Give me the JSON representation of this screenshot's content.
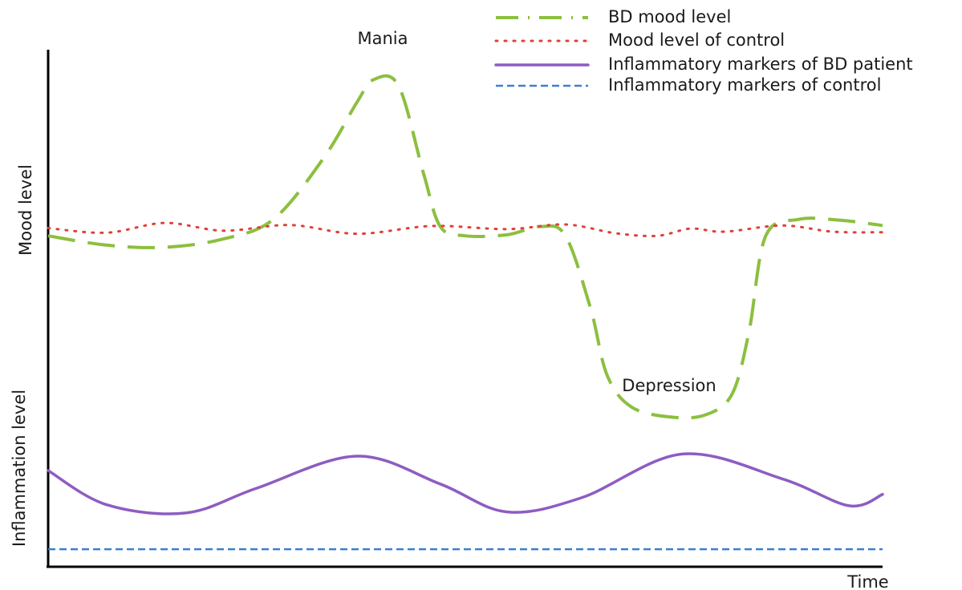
{
  "chart_data": {
    "type": "line",
    "title": "",
    "xlabel": "Time",
    "ylabel_upper": "Mood level",
    "ylabel_lower": "Inflammation level",
    "x": [
      0,
      0.05,
      0.1,
      0.15,
      0.2,
      0.25,
      0.3,
      0.35,
      0.4,
      0.45,
      0.5,
      0.55,
      0.6,
      0.65,
      0.7,
      0.75,
      0.8,
      0.85,
      0.9,
      0.95,
      1.0
    ],
    "xlim": [
      0,
      1
    ],
    "ylim": [
      0,
      1
    ],
    "legend_position": "top-right",
    "grid": false,
    "series": [
      {
        "name": "BD mood level",
        "color": "#8cbf3f",
        "style": "long-dash",
        "points": [
          [
            0,
            0.64
          ],
          [
            0.07,
            0.622
          ],
          [
            0.14,
            0.618
          ],
          [
            0.21,
            0.634
          ],
          [
            0.27,
            0.672
          ],
          [
            0.33,
            0.79
          ],
          [
            0.37,
            0.898
          ],
          [
            0.39,
            0.942
          ],
          [
            0.42,
            0.93
          ],
          [
            0.45,
            0.76
          ],
          [
            0.47,
            0.658
          ],
          [
            0.5,
            0.64
          ],
          [
            0.55,
            0.642
          ],
          [
            0.59,
            0.658
          ],
          [
            0.62,
            0.64
          ],
          [
            0.65,
            0.5
          ],
          [
            0.67,
            0.37
          ],
          [
            0.7,
            0.308
          ],
          [
            0.75,
            0.289
          ],
          [
            0.79,
            0.295
          ],
          [
            0.82,
            0.335
          ],
          [
            0.84,
            0.455
          ],
          [
            0.86,
            0.64
          ],
          [
            0.9,
            0.672
          ],
          [
            0.95,
            0.67
          ],
          [
            1.0,
            0.66
          ]
        ]
      },
      {
        "name": "Mood level of control",
        "color": "#e0403a",
        "style": "dotted",
        "points": [
          [
            0,
            0.655
          ],
          [
            0.07,
            0.646
          ],
          [
            0.14,
            0.665
          ],
          [
            0.21,
            0.65
          ],
          [
            0.29,
            0.661
          ],
          [
            0.37,
            0.644
          ],
          [
            0.46,
            0.659
          ],
          [
            0.55,
            0.653
          ],
          [
            0.62,
            0.662
          ],
          [
            0.68,
            0.645
          ],
          [
            0.73,
            0.64
          ],
          [
            0.77,
            0.654
          ],
          [
            0.81,
            0.648
          ],
          [
            0.88,
            0.66
          ],
          [
            0.94,
            0.648
          ],
          [
            1.0,
            0.647
          ]
        ]
      },
      {
        "name": "Inflammatory markers of BD patient",
        "color": "#8e5cc2",
        "style": "solid",
        "points": [
          [
            0,
            0.186
          ],
          [
            0.07,
            0.12
          ],
          [
            0.165,
            0.104
          ],
          [
            0.25,
            0.152
          ],
          [
            0.37,
            0.214
          ],
          [
            0.47,
            0.16
          ],
          [
            0.55,
            0.106
          ],
          [
            0.64,
            0.134
          ],
          [
            0.76,
            0.218
          ],
          [
            0.88,
            0.17
          ],
          [
            0.96,
            0.118
          ],
          [
            1.0,
            0.14
          ]
        ]
      },
      {
        "name": "Inflammatory markers of control",
        "color": "#3b7fd3",
        "style": "dashed",
        "points": [
          [
            0,
            0.034
          ],
          [
            1.0,
            0.034
          ]
        ]
      }
    ],
    "annotations": [
      {
        "text": "Mania",
        "x": 0.39,
        "y": 0.995
      },
      {
        "text": "Depression",
        "x": 0.76,
        "y": 0.355
      }
    ]
  }
}
